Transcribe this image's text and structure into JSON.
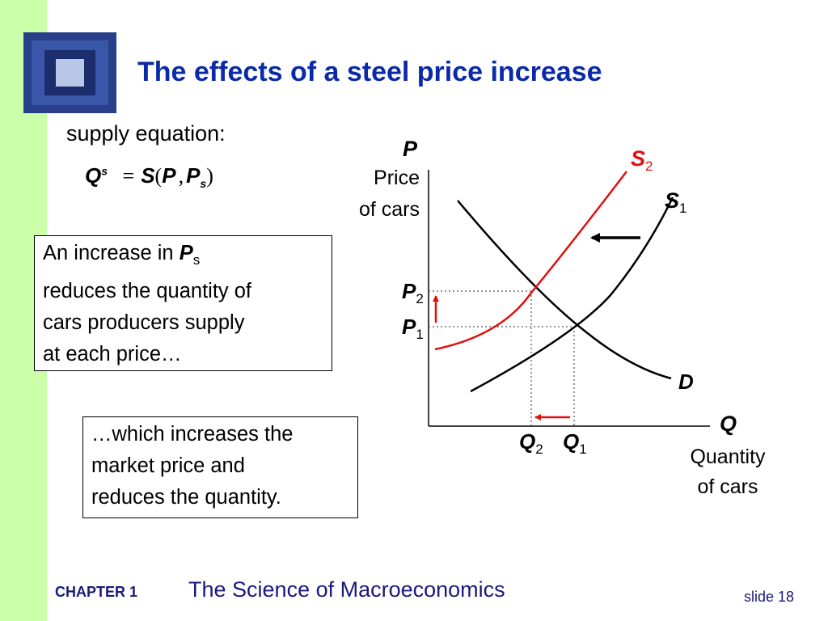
{
  "title": "The effects of a steel price increase",
  "equation": {
    "label": "supply equation:",
    "lhs": "Q",
    "lhs_sup": "s",
    "eq": "=",
    "func": "S",
    "open": "(",
    "arg1": "P",
    "comma": ",",
    "arg2": "P",
    "arg2_sub": "s",
    "close": ")"
  },
  "box1": {
    "line1_prefix": "An increase in ",
    "line1_var": "P",
    "line1_sub": "s",
    "line2": "reduces the quantity of",
    "line3": "cars producers supply",
    "line4": "at each price…"
  },
  "box2": {
    "line1": "…which increases the",
    "line2": "market price and",
    "line3": "reduces the quantity."
  },
  "diagram": {
    "y_axis_symbol": "P",
    "y_axis_line1": "Price",
    "y_axis_line2": "of cars",
    "x_axis_symbol": "Q",
    "x_axis_line1": "Quantity",
    "x_axis_line2": "of cars",
    "supply1": {
      "letter": "S",
      "sub": "1"
    },
    "supply2": {
      "letter": "S",
      "sub": "2"
    },
    "demand": "D",
    "p1": {
      "letter": "P",
      "sub": "1"
    },
    "p2": {
      "letter": "P",
      "sub": "2"
    },
    "q1": {
      "letter": "Q",
      "sub": "1"
    },
    "q2": {
      "letter": "Q",
      "sub": "2"
    },
    "colors": {
      "new_supply": "#e01010",
      "shift_arrows": "#e01010",
      "curves": "#000000",
      "guides": "#555555"
    }
  },
  "footer": {
    "chapter": "CHAPTER 1",
    "book_title": "The Science of Macroeconomics",
    "slide": "slide 18"
  }
}
